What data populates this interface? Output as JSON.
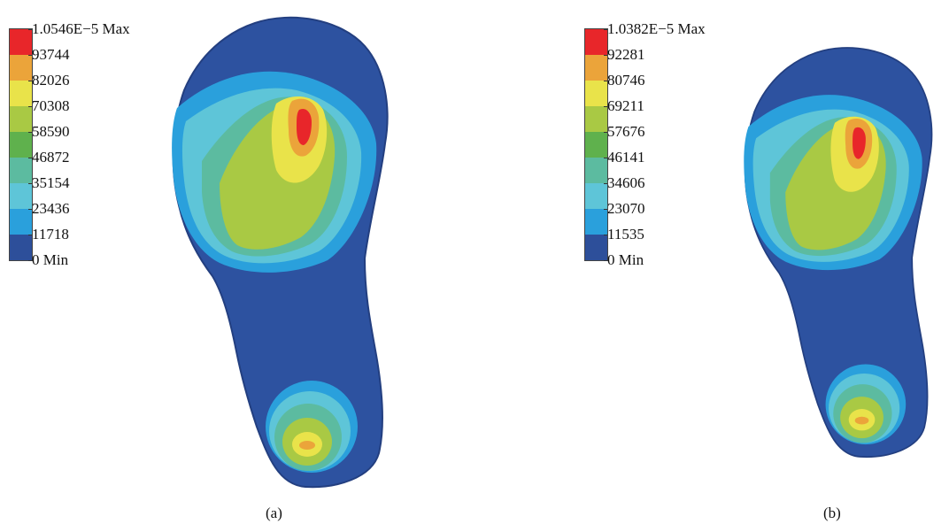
{
  "panels": [
    {
      "caption": "(a)",
      "legend_labels": [
        "1.0546E−5 Max",
        "93744",
        "82026",
        "70308",
        "58590",
        "46872",
        "35154",
        "23436",
        "11718",
        "0 Min"
      ]
    },
    {
      "caption": "(b)",
      "legend_labels": [
        "1.0382E−5 Max",
        "92281",
        "80746",
        "69211",
        "57676",
        "46141",
        "34606",
        "23070",
        "11535",
        "0 Min"
      ]
    }
  ],
  "legend_colors": [
    "#e8262a",
    "#eba43a",
    "#e9e34a",
    "#a9c944",
    "#5fb14d",
    "#5cbba0",
    "#5ec5d8",
    "#2aa0dc",
    "#2d4f9a"
  ]
}
